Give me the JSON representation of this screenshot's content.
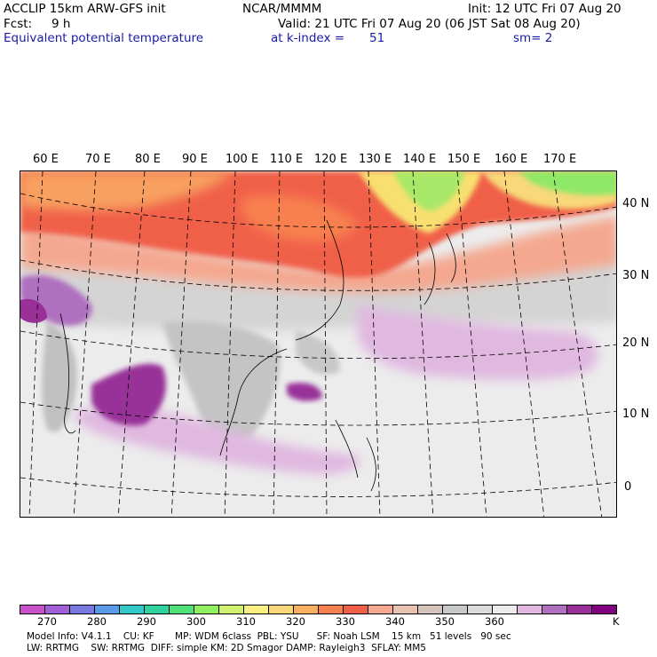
{
  "header": {
    "model_title": "ACCLIP 15km ARW-GFS init",
    "forecast_label": "Fcst:",
    "forecast_value": "9 h",
    "field_name": "Equivalent potential temperature",
    "institution": "NCAR/MMMM",
    "level_text": "at k-index =",
    "level_value": "51",
    "init_text": "Init: 12 UTC Fri 07 Aug 20",
    "valid_text": "Valid: 21 UTC Fri 07 Aug 20 (06 JST Sat 08 Aug 20)",
    "smoothing_text": "sm= 2"
  },
  "map": {
    "lon_labels": [
      "60 E",
      "70 E",
      "80 E",
      "90 E",
      "100 E",
      "110 E",
      "120 E",
      "130 E",
      "140 E",
      "150 E",
      "160 E",
      "170 E"
    ],
    "lat_labels": [
      "40 N",
      "30 N",
      "20 N",
      "10 N",
      "0"
    ]
  },
  "colorbar": {
    "unit": "K",
    "ticks": [
      "270",
      "280",
      "290",
      "300",
      "310",
      "320",
      "330",
      "340",
      "350",
      "360"
    ],
    "colors": [
      "#c850c8",
      "#a060d8",
      "#7878e0",
      "#5a9ae8",
      "#30c8c8",
      "#30d2a0",
      "#50e078",
      "#90f060",
      "#d0f070",
      "#f8f080",
      "#f8d878",
      "#f8b060",
      "#f88050",
      "#f06048",
      "#f4a890",
      "#e8c4b0",
      "#d4c4bc",
      "#c8c8c8",
      "#dcdcdc",
      "#ececec",
      "#e0b8e0",
      "#b070c0",
      "#983098",
      "#800080"
    ]
  },
  "footer": {
    "line1": "Model Info: V4.1.1    CU: KF       MP: WDM 6class  PBL: YSU      SF: Noah LSM    15 km   51 levels   90 sec",
    "line2": "LW: RRTMG    SW: RRTMG  DIFF: simple KM: 2D Smagor DAMP: Rayleigh3  SFLAY: MM5"
  }
}
